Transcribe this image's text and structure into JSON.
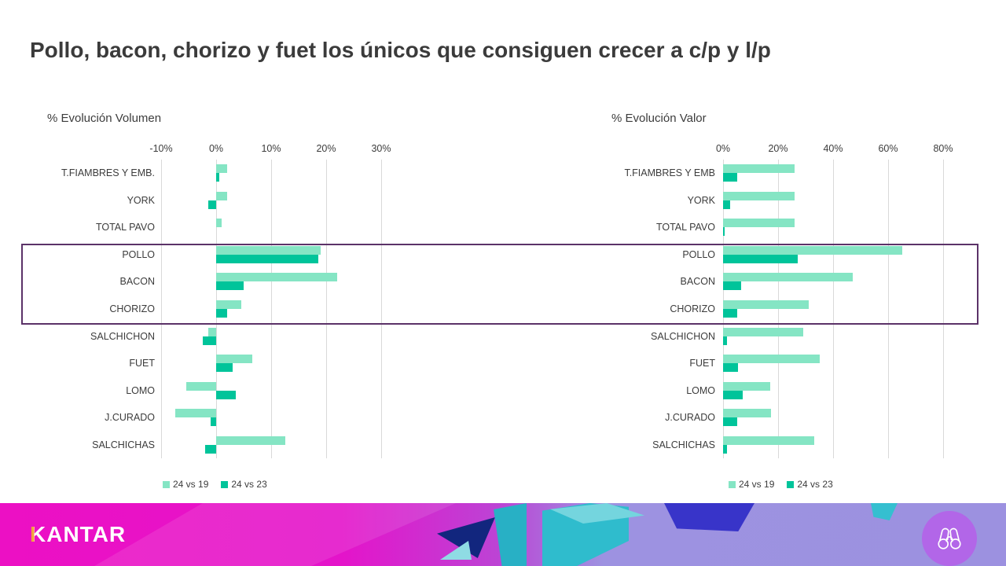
{
  "slide": {
    "title": "Pollo, bacon, chorizo y fuet los únicos que consiguen crecer a c/p y l/p"
  },
  "chart_data": [
    {
      "type": "bar",
      "orientation": "horizontal",
      "title": "% Evolución Volumen",
      "xlabel": "",
      "ylabel": "",
      "xlim": [
        -10,
        35
      ],
      "grid": true,
      "legend_position": "bottom",
      "ticks": [
        "-10%",
        "0%",
        "10%",
        "20%",
        "30%"
      ],
      "tick_values": [
        -10,
        0,
        10,
        20,
        30
      ],
      "categories": [
        "T.FIAMBRES Y EMB.",
        "YORK",
        "TOTAL PAVO",
        "POLLO",
        "BACON",
        "CHORIZO",
        "SALCHICHON",
        "FUET",
        "LOMO",
        "J.CURADO",
        "SALCHICHAS"
      ],
      "series": [
        {
          "name": "24 vs 19",
          "color": "#85e5c4",
          "values": [
            2,
            2,
            1,
            19,
            22,
            4.5,
            -1.5,
            6.5,
            -5.5,
            -7.5,
            12.5
          ]
        },
        {
          "name": "24 vs 23",
          "color": "#00c49a",
          "values": [
            0.5,
            -1.5,
            0,
            18.5,
            5,
            2,
            -2.5,
            3,
            3.5,
            -1,
            -2
          ]
        }
      ]
    },
    {
      "type": "bar",
      "orientation": "horizontal",
      "title": "% Evolución Valor",
      "xlabel": "",
      "ylabel": "",
      "xlim": [
        0,
        90
      ],
      "grid": true,
      "legend_position": "bottom",
      "ticks": [
        "0%",
        "20%",
        "40%",
        "60%",
        "80%"
      ],
      "tick_values": [
        0,
        20,
        40,
        60,
        80
      ],
      "categories": [
        "T.FIAMBRES Y EMB",
        "YORK",
        "TOTAL PAVO",
        "POLLO",
        "BACON",
        "CHORIZO",
        "SALCHICHON",
        "FUET",
        "LOMO",
        "J.CURADO",
        "SALCHICHAS"
      ],
      "series": [
        {
          "name": "24 vs 19",
          "color": "#85e5c4",
          "values": [
            26,
            26,
            26,
            65,
            47,
            31,
            29,
            35,
            17,
            17.5,
            33
          ]
        },
        {
          "name": "24 vs 23",
          "color": "#00c49a",
          "values": [
            5,
            2.5,
            0.5,
            27,
            6.5,
            5,
            1.5,
            5.5,
            7,
            5,
            1.5
          ]
        }
      ]
    }
  ],
  "highlight": {
    "rows": [
      "POLLO",
      "BACON",
      "CHORIZO"
    ],
    "border_color": "#5b3268"
  },
  "footer": {
    "brand_initial": "K",
    "brand_rest": "ANTAR",
    "icon": "binoculars-icon",
    "accent_color": "#ec10c4",
    "lavender_color": "#9c91e0",
    "badge_color": "#b266e8"
  },
  "colors": {
    "series_light": "#85e5c4",
    "series_dark": "#00c49a",
    "gridline": "#d9d9d9",
    "text": "#3c3c3c"
  }
}
